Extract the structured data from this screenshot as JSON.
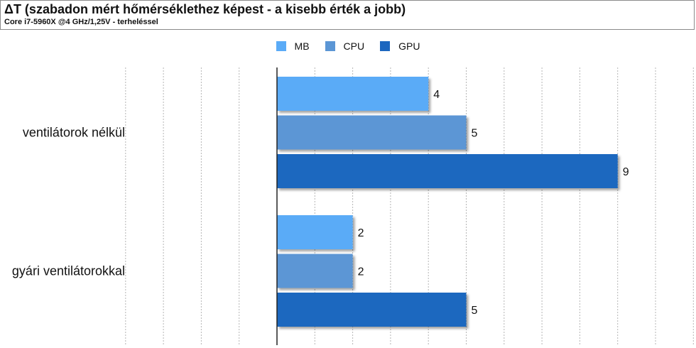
{
  "chart_data": {
    "type": "bar",
    "orientation": "horizontal",
    "title": "ΔT (szabadon mért hőmérséklethez képest - a kisebb érték a jobb)",
    "subtitle": "Core i7-5960X @4 GHz/1,25V - terheléssel",
    "categories": [
      "ventilátorok nélkül",
      "gyári ventilátorokkal"
    ],
    "series": [
      {
        "name": "MB",
        "color": "#5aabf7",
        "values": [
          4,
          2
        ]
      },
      {
        "name": "CPU",
        "color": "#5b96d5",
        "values": [
          5,
          2
        ]
      },
      {
        "name": "GPU",
        "color": "#1d67bf",
        "values": [
          9,
          5
        ]
      }
    ],
    "xlim": [
      -4,
      11
    ],
    "grid": true,
    "legend_position": "top-center"
  }
}
